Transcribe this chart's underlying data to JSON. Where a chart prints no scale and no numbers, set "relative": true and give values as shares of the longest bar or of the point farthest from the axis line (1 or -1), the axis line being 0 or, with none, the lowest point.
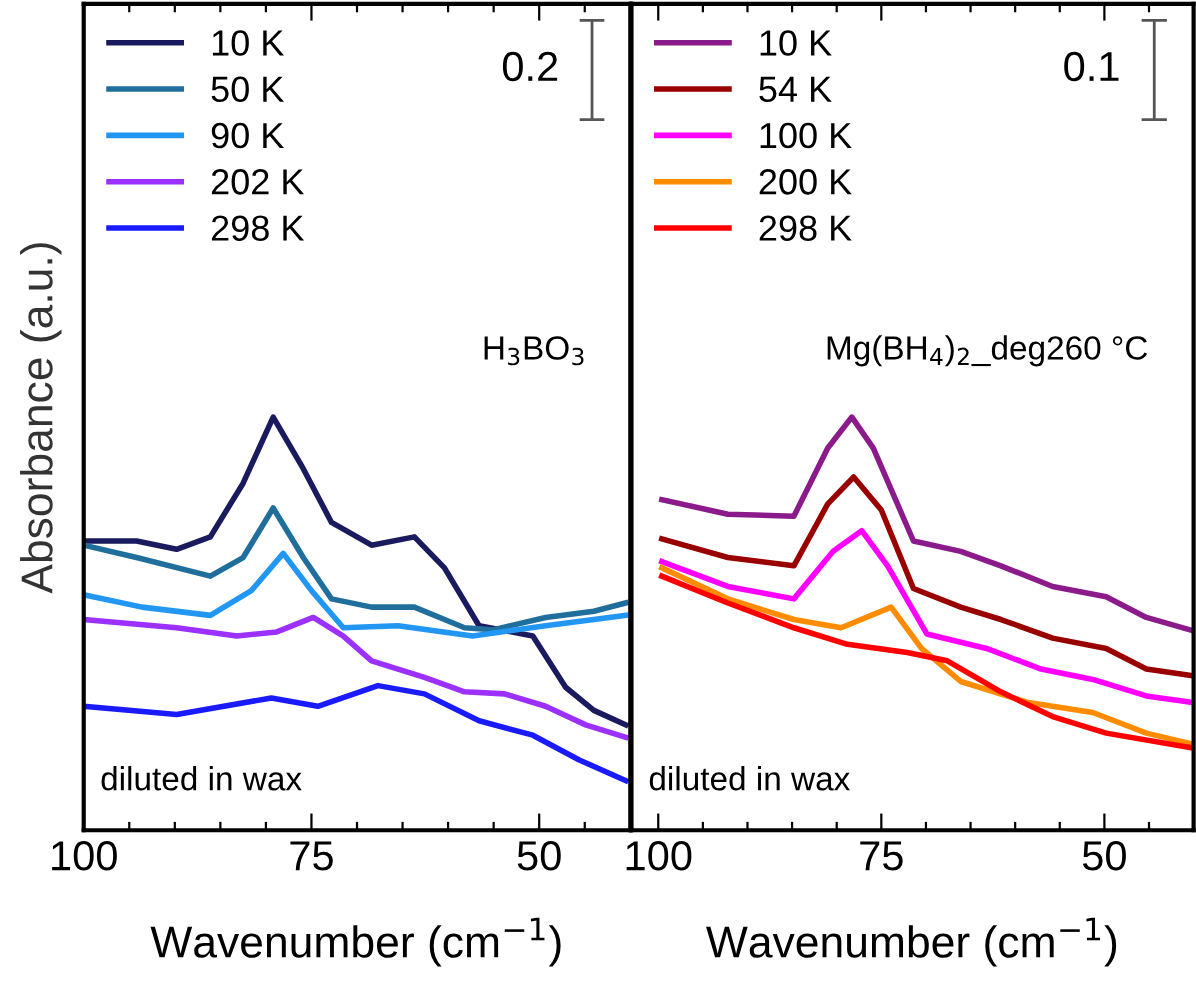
{
  "chart_data": [
    {
      "type": "line",
      "relative": true,
      "xlabel": "Wavenumber (cm$^{−1}$)",
      "ylabel": "Absorbance (a.u.)",
      "xlim": [
        100,
        40
      ],
      "xticks": [
        100,
        {
          "value": 95,
          "label": null
        },
        {
          "value": 90,
          "label": null
        },
        {
          "value": 85,
          "label": null
        },
        {
          "value": 80,
          "label": null
        },
        75,
        {
          "value": 70,
          "label": null
        },
        {
          "value": 65,
          "label": null
        },
        {
          "value": 60,
          "label": null
        },
        {
          "value": 55,
          "label": null
        },
        50,
        {
          "value": 45,
          "label": null
        }
      ],
      "tick_labels": "x",
      "legend": "top left",
      "grid": false,
      "annotations": [
        "0.2",
        "H$_{3}$BO$_{3}$",
        "diluted in wax"
      ],
      "series": [
        {
          "name": "10 K",
          "color": "#1a1a5e",
          "x": [
            100,
            94.2,
            89.8,
            86.1,
            82.5,
            79.2,
            75.9,
            72.8,
            68.4,
            63.7,
            60.4,
            56.6,
            50.7,
            47.1,
            44.0,
            40.5
          ],
          "values": [
            0.7,
            0.7,
            0.68,
            0.71,
            0.84,
            1.0,
            0.875,
            0.745,
            0.69,
            0.71,
            0.635,
            0.495,
            0.47,
            0.346,
            0.29,
            0.255
          ]
        },
        {
          "name": "50 K",
          "color": "#1f6e9c",
          "x": [
            100,
            94.2,
            86.1,
            82.5,
            79.2,
            75.9,
            72.8,
            68.4,
            63.7,
            58.2,
            55.1,
            49.3,
            44.0,
            40.5
          ],
          "values": [
            0.69,
            0.66,
            0.615,
            0.66,
            0.78,
            0.66,
            0.56,
            0.54,
            0.54,
            0.49,
            0.485,
            0.515,
            0.53,
            0.55
          ]
        },
        {
          "name": "90 K",
          "color": "#2196f3",
          "x": [
            100,
            93.6,
            86.1,
            81.6,
            78.1,
            75,
            71.5,
            65.5,
            57.3,
            49.3,
            40.5
          ],
          "values": [
            0.57,
            0.54,
            0.52,
            0.58,
            0.67,
            0.58,
            0.49,
            0.495,
            0.47,
            0.495,
            0.52
          ]
        },
        {
          "name": "202 K",
          "color": "#9b30ff",
          "x": [
            100,
            89.8,
            83.2,
            78.8,
            74.8,
            71.5,
            68.4,
            62.6,
            58.2,
            53.8,
            49.3,
            44.9,
            40.5
          ],
          "values": [
            0.51,
            0.49,
            0.47,
            0.48,
            0.515,
            0.47,
            0.41,
            0.37,
            0.335,
            0.33,
            0.3,
            0.255,
            0.225
          ]
        },
        {
          "name": "298 K",
          "color": "#1a1aff",
          "x": [
            100,
            89.8,
            79.4,
            74.3,
            67.7,
            62.6,
            56.6,
            50.7,
            45.6,
            40.5
          ],
          "values": [
            0.3,
            0.28,
            0.32,
            0.3,
            0.35,
            0.33,
            0.265,
            0.23,
            0.17,
            0.12
          ]
        }
      ]
    },
    {
      "type": "line",
      "relative": true,
      "xlabel": "Wavenumber (cm$^{−1}$)",
      "xlim": [
        103,
        40
      ],
      "xticks": [
        100,
        {
          "value": 95,
          "label": null
        },
        {
          "value": 90,
          "label": null
        },
        {
          "value": 85,
          "label": null
        },
        {
          "value": 80,
          "label": null
        },
        75,
        {
          "value": 70,
          "label": null
        },
        {
          "value": 65,
          "label": null
        },
        {
          "value": 60,
          "label": null
        },
        {
          "value": 55,
          "label": null
        },
        50,
        {
          "value": 45,
          "label": null
        }
      ],
      "tick_labels": "x",
      "legend": "top left",
      "grid": false,
      "annotations": [
        "0.1",
        "Mg(BH$_{4}$)$_{2}$_deg260 °C",
        "diluted in wax"
      ],
      "series": [
        {
          "name": "10 K",
          "color": "#8b1a8b",
          "x": [
            99.6,
            92.2,
            84.8,
            81.0,
            78.3,
            75.9,
            71.4,
            66.1,
            61.6,
            55.8,
            49.8,
            45.3,
            40.4
          ],
          "values": [
            0.8,
            0.765,
            0.76,
            0.925,
            1.0,
            0.925,
            0.7,
            0.675,
            0.64,
            0.59,
            0.565,
            0.515,
            0.485
          ]
        },
        {
          "name": "54 K",
          "color": "#990000",
          "x": [
            99.6,
            92.2,
            84.8,
            81.0,
            78.1,
            75.0,
            71.4,
            66.1,
            61.6,
            55.8,
            49.8,
            45.3,
            40.4
          ],
          "values": [
            0.705,
            0.66,
            0.64,
            0.79,
            0.855,
            0.775,
            0.585,
            0.54,
            0.51,
            0.465,
            0.44,
            0.39,
            0.375
          ]
        },
        {
          "name": "100 K",
          "color": "#ff00ff",
          "x": [
            99.6,
            92.2,
            84.8,
            80.4,
            77.2,
            74.3,
            69.9,
            63.2,
            57.1,
            51.3,
            45.3,
            40.4
          ],
          "values": [
            0.65,
            0.59,
            0.56,
            0.675,
            0.725,
            0.64,
            0.475,
            0.44,
            0.39,
            0.365,
            0.325,
            0.31
          ]
        },
        {
          "name": "200 K",
          "color": "#ff8c00",
          "x": [
            99.6,
            92.2,
            84.8,
            79.5,
            73.9,
            70.5,
            66.1,
            58.7,
            51.3,
            45.3,
            40.4
          ],
          "values": [
            0.635,
            0.56,
            0.51,
            0.49,
            0.54,
            0.44,
            0.36,
            0.31,
            0.285,
            0.235,
            0.21
          ]
        },
        {
          "name": "298 K",
          "color": "#ff0000",
          "x": [
            99.6,
            92.2,
            84.8,
            78.8,
            72.1,
            67.6,
            61.6,
            55.8,
            49.8,
            40.4
          ],
          "values": [
            0.615,
            0.55,
            0.49,
            0.45,
            0.43,
            0.41,
            0.335,
            0.275,
            0.235,
            0.2
          ]
        }
      ]
    }
  ]
}
